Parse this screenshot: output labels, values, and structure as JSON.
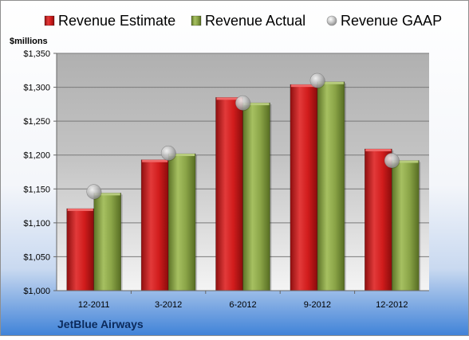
{
  "chart_data": {
    "type": "bar",
    "categories": [
      "12-2011",
      "3-2012",
      "6-2012",
      "9-2012",
      "12-2012"
    ],
    "series": [
      {
        "name": "Revenue Estimate",
        "values": [
          1121,
          1193,
          1285,
          1304,
          1209
        ],
        "color": "#cc1a1a"
      },
      {
        "name": "Revenue Actual",
        "values": [
          1144,
          1202,
          1277,
          1308,
          1192
        ],
        "color": "#7f9a3a"
      }
    ],
    "markers": {
      "name": "Revenue GAAP",
      "values": [
        1146,
        1203,
        1277,
        1310,
        1192
      ],
      "color": "#b8b8b8"
    },
    "ylabel": "$millions",
    "ylim": [
      1000,
      1350
    ],
    "yticks": [
      1000,
      1050,
      1100,
      1150,
      1200,
      1250,
      1300,
      1350
    ],
    "ytick_labels": [
      "$1,000",
      "$1,050",
      "$1,100",
      "$1,150",
      "$1,200",
      "$1,250",
      "$1,300",
      "$1,350"
    ],
    "grid": true,
    "legend_position": "top",
    "footer": "JetBlue Airways"
  }
}
